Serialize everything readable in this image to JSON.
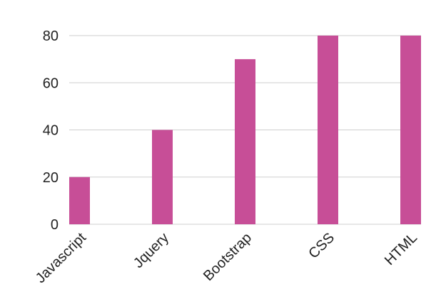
{
  "chart_data": {
    "type": "bar",
    "categories": [
      "Javascript",
      "Jquery",
      "Bootstrap",
      "CSS",
      "HTML"
    ],
    "values": [
      20,
      40,
      70,
      80,
      80
    ],
    "title": "",
    "xlabel": "",
    "ylabel": "",
    "ylim": [
      0,
      80
    ],
    "yticks": [
      0,
      20,
      40,
      60,
      80
    ],
    "grid": true,
    "legend": "none",
    "bar_color": "#c74e97",
    "grid_color": "#cfcfcf",
    "text_color": "#222222"
  }
}
